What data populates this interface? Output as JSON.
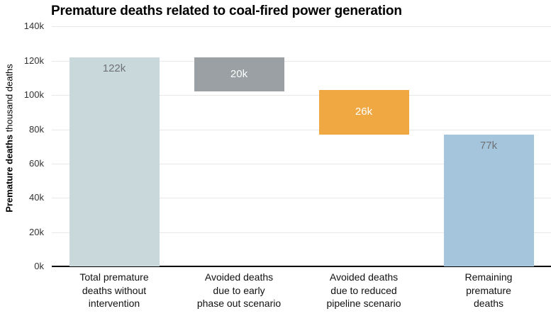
{
  "chart_data": {
    "type": "bar",
    "subtype": "waterfall",
    "title": "Premature deaths related to coal-fired power generation",
    "ylabel_bold": "Premature deaths",
    "ylabel_regular": "thousand deaths",
    "ylim_k": [
      0,
      140
    ],
    "ytick_step_k": 20,
    "ytick_labels": [
      "0k",
      "20k",
      "40k",
      "60k",
      "80k",
      "100k",
      "120k",
      "140k"
    ],
    "grid": true,
    "legend": "none",
    "colors": {
      "grid": "#e8e8e8",
      "axis": "#000000",
      "title": "#000000",
      "tick_text": "#333333",
      "inside_label_gray": "#6e7276",
      "inside_label_white": "#ffffff"
    },
    "categories": [
      "Total premature deaths without intervention",
      "Avoided deaths due to early phase out scenario",
      "Avoided deaths due to reduced pipeline scenario",
      "Remaining premature deaths"
    ],
    "category_lines": [
      "Total premature\ndeaths without\nintervention",
      "Avoided deaths\ndue to early\nphase out scenario",
      "Avoided deaths\ndue to reduced\npipeline scenario",
      "Remaining\npremature\ndeaths"
    ],
    "bars": [
      {
        "name": "total-premature-deaths",
        "base_k": 0,
        "top_k": 122,
        "value_k": 122,
        "label": "122k",
        "color": "#c9d8da",
        "label_color": "#6e7276",
        "label_pos": "top"
      },
      {
        "name": "avoided-early-phase-out",
        "base_k": 102,
        "top_k": 122,
        "value_k": 20,
        "label": "20k",
        "color": "#9aa0a3",
        "label_color": "#ffffff",
        "label_pos": "center"
      },
      {
        "name": "avoided-reduced-pipeline",
        "base_k": 77,
        "top_k": 103,
        "value_k": 26,
        "label": "26k",
        "color": "#f0a843",
        "label_color": "#ffffff",
        "label_pos": "center"
      },
      {
        "name": "remaining-premature-deaths",
        "base_k": 0,
        "top_k": 77,
        "value_k": 77,
        "label": "77k",
        "color": "#a5c5dd",
        "label_color": "#6e7276",
        "label_pos": "top"
      }
    ]
  }
}
